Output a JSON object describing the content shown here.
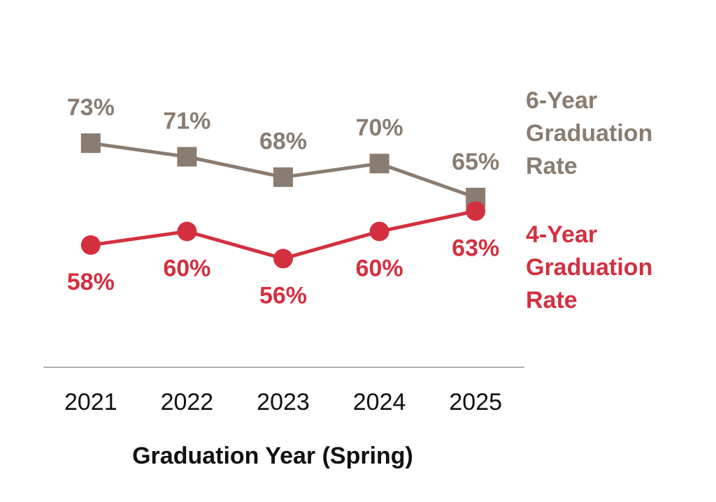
{
  "chart_data": {
    "type": "line",
    "x_label": "Graduation Year (Spring)",
    "categories": [
      "2021",
      "2022",
      "2023",
      "2024",
      "2025"
    ],
    "series": [
      {
        "name": "6-Year Graduation Rate",
        "color": "#8a7c71",
        "marker": "square",
        "values": [
          73,
          71,
          68,
          70,
          65
        ],
        "value_labels": [
          "73%",
          "71%",
          "68%",
          "70%",
          "65%"
        ],
        "label_side": "above"
      },
      {
        "name": "4-Year Graduation Rate",
        "color": "#d3303f",
        "marker": "circle",
        "values": [
          58,
          60,
          56,
          60,
          63
        ],
        "value_labels": [
          "58%",
          "60%",
          "56%",
          "60%",
          "63%"
        ],
        "label_side": "below"
      }
    ],
    "ylim": [
      40,
      80
    ]
  }
}
